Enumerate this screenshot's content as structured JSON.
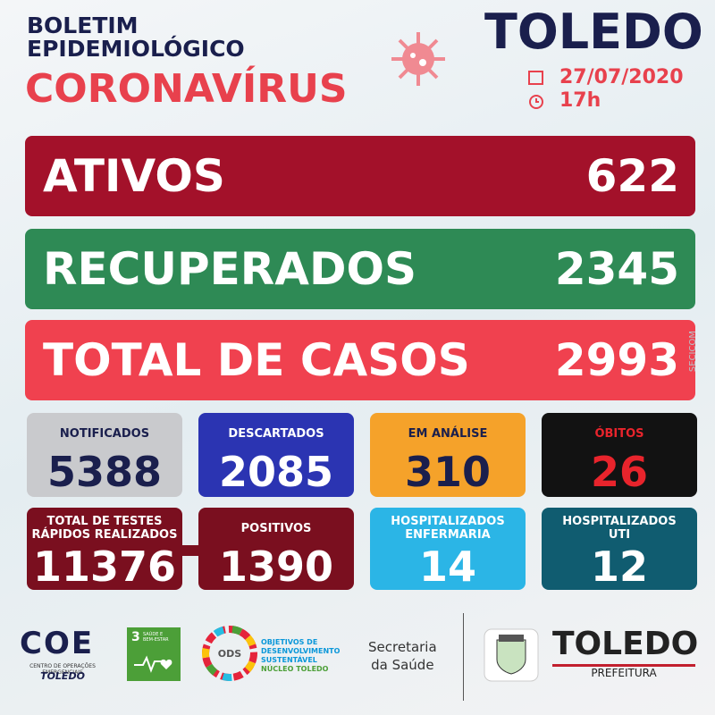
{
  "header": {
    "title_lines": [
      "BOLETIM",
      "EPIDEMIOLÓGICO"
    ],
    "subtitle": "CORONAVÍRUS",
    "city": "TOLEDO",
    "date": "27/07/2020",
    "time": "17h"
  },
  "summary": [
    {
      "label": "ATIVOS",
      "value": 622
    },
    {
      "label": "RECUPERADOS",
      "value": 2345
    },
    {
      "label": "TOTAL DE CASOS",
      "value": 2993
    }
  ],
  "side_credit": "SECICOM",
  "cards": [
    {
      "label": [
        "NOTIFICADOS"
      ],
      "value": 5388
    },
    {
      "label": [
        "DESCARTADOS"
      ],
      "value": 2085
    },
    {
      "label": [
        "EM ANÁLISE"
      ],
      "value": 310
    },
    {
      "label": [
        "ÓBITOS"
      ],
      "value": 26
    },
    {
      "label": [
        "TOTAL DE TESTES",
        "RÁPIDOS REALIZADOS"
      ],
      "value": 11376
    },
    {
      "label": [
        "POSITIVOS"
      ],
      "value": 1390
    },
    {
      "label": [
        "HOSPITALIZADOS",
        "ENFERMARIA"
      ],
      "value": 14
    },
    {
      "label": [
        "HOSPITALIZADOS",
        "UTI"
      ],
      "value": 12
    }
  ],
  "footer": {
    "coe": {
      "logo": "COE",
      "name": "CENTRO DE OPERAÇÕES EMERGENCIAIS",
      "city": "TOLEDO"
    },
    "sdg": {
      "number": "3",
      "label": [
        "SAÚDE E",
        "BEM-ESTAR"
      ]
    },
    "ods": {
      "badge": "ODS",
      "label": [
        "OBJETIVOS DE",
        "DESENVOLVIMENTO",
        "SUSTENTÁVEL"
      ],
      "unit": "NÚCLEO TOLEDO"
    },
    "secretaria": [
      "Secretaria",
      "da Saúde"
    ],
    "prefeitura": {
      "city": "TOLEDO",
      "label": "PREFEITURA"
    }
  }
}
